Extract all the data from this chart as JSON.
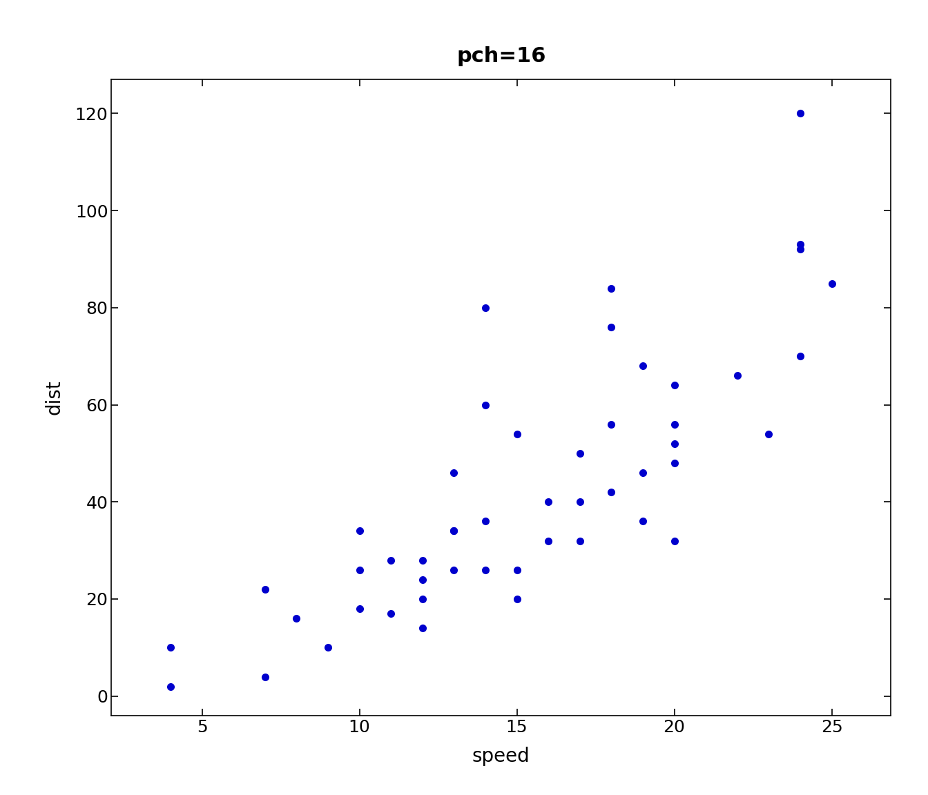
{
  "title": "pch=16",
  "xlabel": "speed",
  "ylabel": "dist",
  "color": "#0000CD",
  "marker": "o",
  "markersize": 8,
  "speed": [
    4,
    4,
    7,
    7,
    8,
    9,
    10,
    10,
    10,
    11,
    11,
    12,
    12,
    12,
    12,
    13,
    13,
    13,
    13,
    14,
    14,
    14,
    14,
    15,
    15,
    15,
    16,
    16,
    17,
    17,
    17,
    18,
    18,
    18,
    18,
    19,
    19,
    19,
    20,
    20,
    20,
    20,
    20,
    22,
    23,
    24,
    24,
    24,
    24,
    25
  ],
  "dist": [
    2,
    10,
    4,
    22,
    16,
    10,
    18,
    26,
    34,
    17,
    28,
    14,
    20,
    24,
    28,
    26,
    34,
    34,
    46,
    26,
    36,
    60,
    80,
    20,
    26,
    54,
    32,
    40,
    32,
    40,
    50,
    42,
    56,
    76,
    84,
    36,
    46,
    68,
    32,
    48,
    52,
    56,
    64,
    66,
    54,
    70,
    92,
    93,
    120,
    85
  ],
  "xlim": [
    2.12,
    26.88
  ],
  "ylim": [
    -4.0,
    127.0
  ],
  "xticks": [
    5,
    10,
    15,
    20,
    25
  ],
  "yticks": [
    0,
    20,
    40,
    60,
    80,
    100,
    120
  ],
  "bg_color": "#FFFFFF",
  "plot_bg_color": "#FFFFFF",
  "title_fontsize": 22,
  "label_fontsize": 20,
  "tick_fontsize": 18
}
